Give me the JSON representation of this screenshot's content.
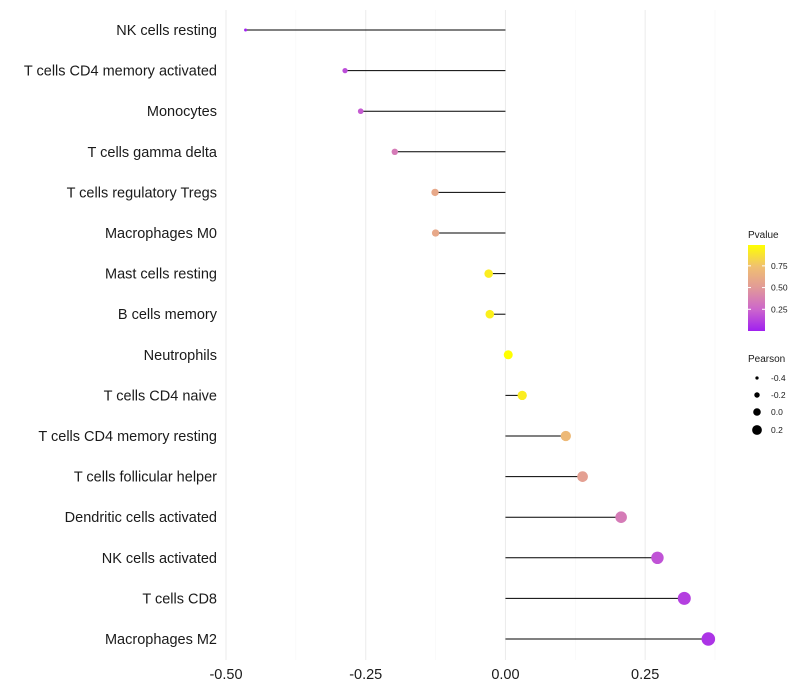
{
  "chart_data": {
    "type": "lollipop",
    "title": "",
    "xlabel": "",
    "ylabel": "",
    "xlim": [
      -0.5,
      0.4
    ],
    "x_ticks": [
      -0.5,
      -0.25,
      0.0,
      0.25
    ],
    "x_tick_labels": [
      "-0.50",
      "-0.25",
      "0.00",
      "0.25"
    ],
    "grid": true,
    "categories": [
      "NK cells resting",
      "T cells CD4 memory activated",
      "Monocytes",
      "T cells gamma delta",
      "T cells regulatory  Tregs ",
      "Macrophages M0",
      "Mast cells resting",
      "B cells memory",
      "Neutrophils",
      "T cells CD4 naive",
      "T cells CD4 memory resting",
      "T cells follicular helper",
      "Dendritic cells activated",
      "NK cells activated",
      "T cells CD8",
      "Macrophages M2"
    ],
    "pearson": [
      -0.465,
      -0.287,
      -0.259,
      -0.198,
      -0.126,
      -0.125,
      -0.03,
      -0.028,
      0.005,
      0.03,
      0.108,
      0.138,
      0.207,
      0.272,
      0.32,
      0.363
    ],
    "pvalue": [
      0.01,
      0.16,
      0.21,
      0.35,
      0.59,
      0.59,
      0.92,
      0.93,
      0.99,
      0.92,
      0.7,
      0.54,
      0.35,
      0.18,
      0.11,
      0.07
    ],
    "legend": {
      "position": "right",
      "color": {
        "title": "Pvalue",
        "ticks": [
          0.25,
          0.5,
          0.75
        ],
        "tick_labels": [
          "0.25",
          "0.50",
          "0.75"
        ],
        "range": [
          0.0,
          0.99
        ],
        "colors_low_to_high": [
          "#a020f0",
          "#cc66cc",
          "#e19999",
          "#f0c070",
          "#ffff00"
        ]
      },
      "size": {
        "title": "Pearson",
        "values": [
          -0.4,
          -0.2,
          0.0,
          0.2
        ],
        "labels": [
          "-0.4",
          "-0.2",
          "0.0",
          "0.2"
        ]
      }
    }
  }
}
